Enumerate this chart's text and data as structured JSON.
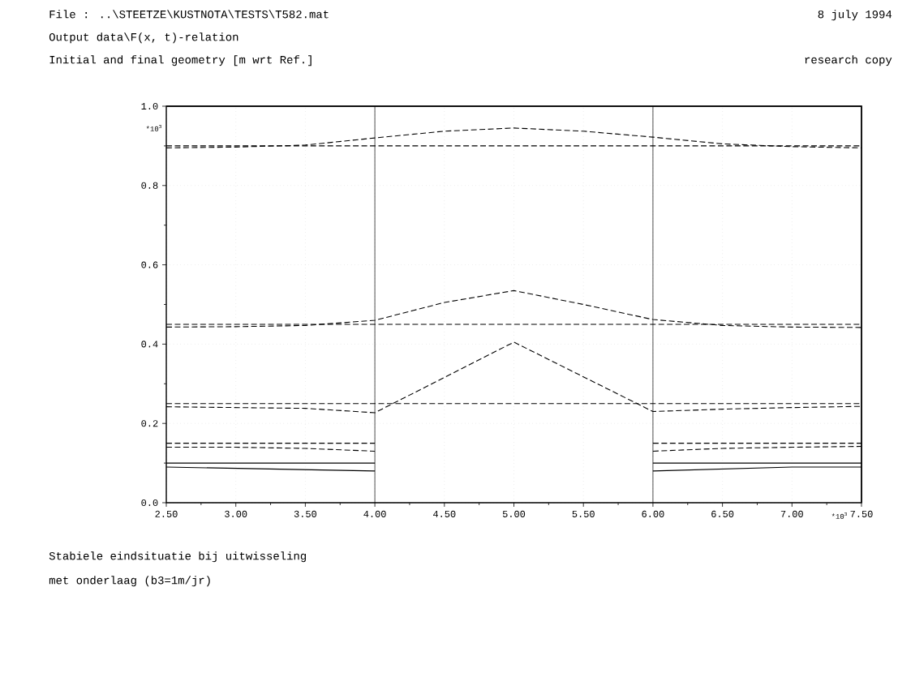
{
  "chart_data": {
    "type": "line",
    "title": "File : ..\\STEETZE\\KUSTNOTA\\TESTS\\T582.mat",
    "subtitle": "Output data\\F(x, t)-relation",
    "annotations": [
      "8 july 1994",
      "Initial and final geometry [m wrt Ref.]",
      "research copy",
      "*10$^{3}$",
      "*10$^{3}$",
      "Stabiele eindsituatie bij uitwisseling",
      "met onderlaag (b3=1m/jr)"
    ],
    "xlim": [
      2.5,
      7.5
    ],
    "ylim": [
      0,
      1.0
    ],
    "xticks": [
      {
        "value": 2.5,
        "label": "2.50"
      },
      {
        "value": 2.75,
        "label": null
      },
      {
        "value": 3.0,
        "label": "3.00"
      },
      {
        "value": 3.25,
        "label": null
      },
      {
        "value": 3.5,
        "label": "3.50"
      },
      {
        "value": 3.75,
        "label": null
      },
      {
        "value": 4.0,
        "label": "4.00"
      },
      {
        "value": 4.25,
        "label": null
      },
      {
        "value": 4.5,
        "label": "4.50"
      },
      {
        "value": 4.75,
        "label": null
      },
      {
        "value": 5.0,
        "label": "5.00"
      },
      {
        "value": 5.25,
        "label": null
      },
      {
        "value": 5.5,
        "label": "5.50"
      },
      {
        "value": 5.75,
        "label": null
      },
      {
        "value": 6.0,
        "label": "6.00"
      },
      {
        "value": 6.25,
        "label": null
      },
      {
        "value": 6.5,
        "label": "6.50"
      },
      {
        "value": 6.75,
        "label": null
      },
      {
        "value": 7.0,
        "label": "7.00"
      },
      {
        "value": 7.25,
        "label": null
      },
      {
        "value": 7.5,
        "label": "7.50"
      }
    ],
    "yticks": [
      {
        "value": 0,
        "label": "0.0"
      },
      {
        "value": 0.1,
        "label": null
      },
      {
        "value": 0.2,
        "label": "0.2"
      },
      {
        "value": 0.3,
        "label": null
      },
      {
        "value": 0.4,
        "label": "0.4"
      },
      {
        "value": 0.5,
        "label": null
      },
      {
        "value": 0.6,
        "label": "0.6"
      },
      {
        "value": 0.7,
        "label": null
      },
      {
        "value": 0.8,
        "label": "0.8"
      },
      {
        "value": 0.9,
        "label": null
      },
      {
        "value": 1.0,
        "label": "1.0"
      }
    ],
    "grid": true,
    "marker": "none",
    "ref_lines": [
      {
        "axis": "x",
        "value": 4.0,
        "line_style": "solid"
      },
      {
        "axis": "x",
        "value": 6.0,
        "line_style": "solid"
      }
    ],
    "series": [
      {
        "color": "#000000",
        "line_style": "dashed",
        "x": [
          2.5,
          7.5
        ],
        "values": [
          0.9,
          0.9
        ]
      },
      {
        "color": "#000000",
        "line_style": "dashed",
        "x": [
          2.5,
          3.0,
          3.5,
          4.0,
          4.5,
          5.0,
          5.5,
          6.0,
          6.5,
          7.0,
          7.5
        ],
        "values": [
          0.895,
          0.897,
          0.902,
          0.92,
          0.937,
          0.945,
          0.937,
          0.922,
          0.905,
          0.898,
          0.895
        ]
      },
      {
        "color": "#000000",
        "line_style": "dashed",
        "x": [
          2.5,
          7.5
        ],
        "values": [
          0.45,
          0.45
        ]
      },
      {
        "color": "#000000",
        "line_style": "dashed",
        "x": [
          2.5,
          3.0,
          3.5,
          4.0,
          4.5,
          5.0,
          5.5,
          6.0,
          6.5,
          7.0,
          7.5
        ],
        "values": [
          0.443,
          0.444,
          0.447,
          0.46,
          0.505,
          0.535,
          0.5,
          0.462,
          0.447,
          0.443,
          0.442
        ]
      },
      {
        "color": "#000000",
        "line_style": "dashed",
        "x": [
          2.5,
          7.5
        ],
        "values": [
          0.25,
          0.25
        ]
      },
      {
        "color": "#000000",
        "line_style": "dashed",
        "x": [
          2.5,
          3.0,
          3.5,
          4.0,
          5.0,
          6.0,
          6.5,
          7.0,
          7.5
        ],
        "values": [
          0.242,
          0.24,
          0.238,
          0.227,
          0.405,
          0.23,
          0.236,
          0.24,
          0.243
        ]
      },
      {
        "color": "#000000",
        "line_style": "dashed",
        "x": [
          2.5,
          4.0,
          5.0,
          6.0,
          7.5
        ],
        "values": [
          0.15,
          0.15,
          null,
          0.15,
          0.15
        ]
      },
      {
        "color": "#000000",
        "line_style": "dashed",
        "x": [
          2.5,
          3.0,
          3.5,
          4.0,
          5.0,
          6.0,
          6.5,
          7.0,
          7.5
        ],
        "values": [
          0.14,
          0.14,
          0.137,
          0.13,
          null,
          0.13,
          0.137,
          0.14,
          0.142
        ]
      },
      {
        "color": "#000000",
        "line_style": "solid",
        "x": [
          2.5,
          4.0,
          5.0,
          6.0,
          7.5
        ],
        "values": [
          0.1,
          0.1,
          null,
          0.1,
          0.1
        ]
      },
      {
        "color": "#000000",
        "line_style": "solid",
        "x": [
          2.5,
          4.0,
          5.0,
          6.0,
          7.0,
          7.5
        ],
        "values": [
          0.09,
          0.08,
          null,
          0.08,
          0.09,
          0.09
        ]
      }
    ]
  }
}
